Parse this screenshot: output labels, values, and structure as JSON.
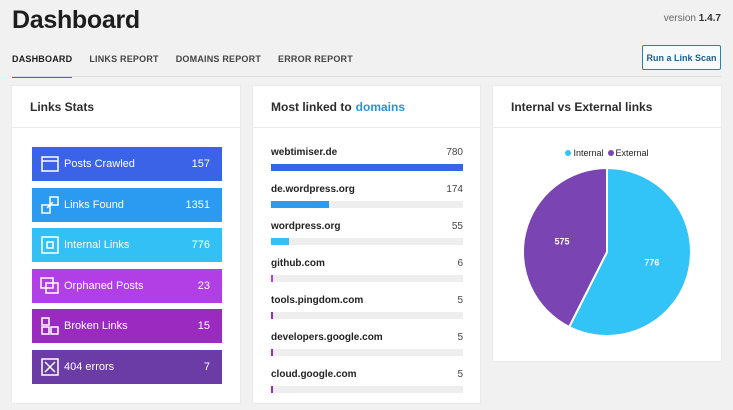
{
  "header": {
    "title": "Dashboard",
    "version_label": "version",
    "version": "1.4.7"
  },
  "tabs": [
    {
      "label": "DASHBOARD",
      "active": true
    },
    {
      "label": "LINKS REPORT",
      "active": false
    },
    {
      "label": "DOMAINS REPORT",
      "active": false
    },
    {
      "label": "ERROR REPORT",
      "active": false
    }
  ],
  "scan_button": {
    "label": "Run a Link Scan"
  },
  "links_stats": {
    "title": "Links Stats",
    "items": [
      {
        "label": "Posts Crawled",
        "value": "157",
        "color": "#3a63e8",
        "icon": "browser-window-icon"
      },
      {
        "label": "Links Found",
        "value": "1351",
        "color": "#2b9bf2",
        "icon": "link-icon"
      },
      {
        "label": "Internal Links",
        "value": "776",
        "color": "#33c1f5",
        "icon": "square-target-icon"
      },
      {
        "label": "Orphaned Posts",
        "value": "23",
        "color": "#b23ee6",
        "icon": "stacked-windows-icon"
      },
      {
        "label": "Broken Links",
        "value": "15",
        "color": "#9b2bc0",
        "icon": "broken-link-icon"
      },
      {
        "label": "404 errors",
        "value": "7",
        "color": "#6b3ba6",
        "icon": "x-box-icon"
      }
    ]
  },
  "domains": {
    "title_prefix": "Most linked to",
    "title_accent": "domains",
    "items": [
      {
        "name": "webtimiser.de",
        "count": "780",
        "fraction": 1.0,
        "color": "#3a63e8"
      },
      {
        "name": "de.wordpress.org",
        "count": "174",
        "fraction": 0.3,
        "color": "#2b9bf2"
      },
      {
        "name": "wordpress.org",
        "count": "55",
        "fraction": 0.095,
        "color": "#33c1f5"
      },
      {
        "name": "github.com",
        "count": "6",
        "fraction": 0.012,
        "color": "#b23ee6"
      },
      {
        "name": "tools.pingdom.com",
        "count": "5",
        "fraction": 0.01,
        "color": "#9b2bc0"
      },
      {
        "name": "developers.google.com",
        "count": "5",
        "fraction": 0.01,
        "color": "#9b2bc0"
      },
      {
        "name": "cloud.google.com",
        "count": "5",
        "fraction": 0.01,
        "color": "#9b2bc0"
      }
    ]
  },
  "chart_data": {
    "type": "pie",
    "title": "Internal vs External links",
    "series": [
      {
        "name": "Internal",
        "value": 776,
        "color": "#33c4f7"
      },
      {
        "name": "External",
        "value": 575,
        "color": "#7a45b2"
      }
    ],
    "legend": "top"
  }
}
